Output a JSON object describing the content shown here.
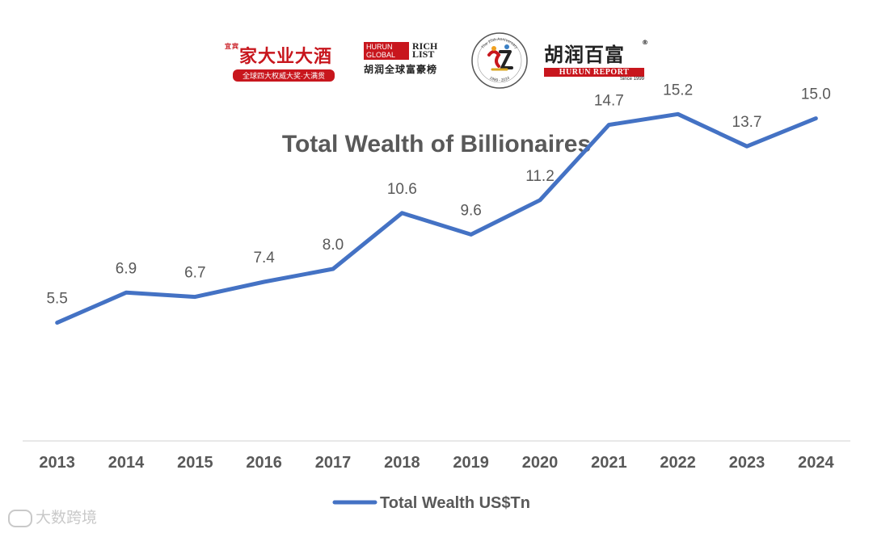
{
  "logos": {
    "jiada": {
      "brand": "家大业大酒",
      "small": "宜宾",
      "tagline": "全球四大权威大奖·大满贯"
    },
    "hurun_list": {
      "line1": "HURUN",
      "line2": "GLOBAL",
      "rich": "RICH",
      "list": "LIST",
      "cn": "胡润全球富豪榜"
    },
    "anniversary": {
      "ring_text": "The 25th Anniversary",
      "years": "1999 - 2024"
    },
    "hurun_report": {
      "cn": "胡润百富",
      "reg": "®",
      "en": "HURUN REPORT",
      "since": "Since 1999"
    }
  },
  "chart_data": {
    "type": "line",
    "title": "Total Wealth of Billionaires",
    "categories": [
      "2013",
      "2014",
      "2015",
      "2016",
      "2017",
      "2018",
      "2019",
      "2020",
      "2021",
      "2022",
      "2023",
      "2024"
    ],
    "series": [
      {
        "name": "Total Wealth US$Tn",
        "values": [
          5.5,
          6.9,
          6.7,
          7.4,
          8.0,
          10.6,
          9.6,
          11.2,
          14.7,
          15.2,
          13.7,
          15.0
        ],
        "color": "#4472c4"
      }
    ],
    "data_labels": [
      "5.5",
      "6.9",
      "6.7",
      "7.4",
      "8.0",
      "10.6",
      "9.6",
      "11.2",
      "14.7",
      "15.2",
      "13.7",
      "15.0"
    ],
    "ylim": [
      0,
      16
    ],
    "grid": false,
    "legend": "bottom-center"
  },
  "watermark": "大数跨境"
}
